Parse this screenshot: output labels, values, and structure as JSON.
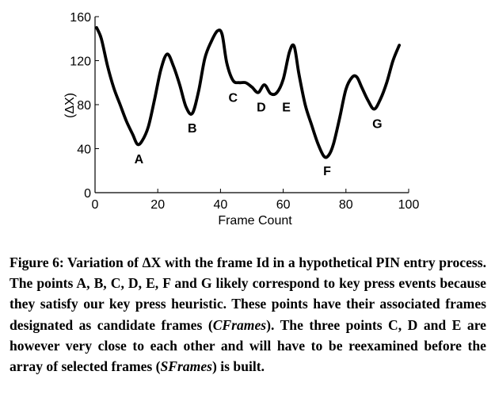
{
  "chart_data": {
    "type": "line",
    "xlabel": "Frame Count",
    "ylabel": "(ΔX)",
    "xlim": [
      0,
      100
    ],
    "ylim": [
      0,
      160
    ],
    "xticks": [
      "0",
      "20",
      "40",
      "60",
      "80",
      "100"
    ],
    "yticks": [
      "0",
      "40",
      "80",
      "120",
      "160"
    ],
    "grid": false,
    "series": [
      {
        "x": [
          0.5,
          2,
          4,
          6,
          8,
          10,
          12,
          13.5,
          15,
          17,
          19,
          21,
          23,
          25,
          27,
          29,
          31,
          33,
          35,
          37,
          39,
          40.5,
          42,
          44,
          46,
          48,
          50,
          52,
          54,
          56,
          58,
          60,
          62,
          63.5,
          65,
          67,
          69,
          71,
          73,
          74.5,
          76,
          78,
          80,
          82,
          83.5,
          85,
          87,
          89,
          91,
          93,
          95,
          97
        ],
        "y": [
          150,
          140,
          115,
          95,
          80,
          65,
          53,
          44,
          47,
          60,
          85,
          112,
          126,
          115,
          98,
          78,
          72,
          92,
          122,
          137,
          147,
          144,
          118,
          102,
          100,
          100,
          96,
          91,
          98,
          90,
          91,
          103,
          128,
          133,
          108,
          80,
          62,
          45,
          33,
          34,
          44,
          68,
          94,
          105,
          105,
          96,
          84,
          76,
          85,
          100,
          120,
          134
        ]
      }
    ],
    "annotations": [
      {
        "text": "A",
        "x": 14,
        "y": 44
      },
      {
        "text": "B",
        "x": 31,
        "y": 72
      },
      {
        "text": "C",
        "x": 44,
        "y": 100
      },
      {
        "text": "D",
        "x": 53,
        "y": 91
      },
      {
        "text": "E",
        "x": 61,
        "y": 91
      },
      {
        "text": "F",
        "x": 74,
        "y": 33
      },
      {
        "text": "G",
        "x": 90,
        "y": 76
      }
    ]
  },
  "caption": {
    "figure_label": "Figure 6:",
    "text_1": " Variation of ΔX with the frame Id in a hypothetical PIN entry process. The points A, B, C, D, E, F and G likely correspond to key press events because they satisfy our key press heuristic. These points have their associated frames designated as candidate frames (",
    "cframes": "CFrames",
    "text_2": "). The three points C, D and E are however very close to each other and will have to be reexamined before the array of selected frames (",
    "sframes": "SFrames",
    "text_3": ") is built."
  }
}
